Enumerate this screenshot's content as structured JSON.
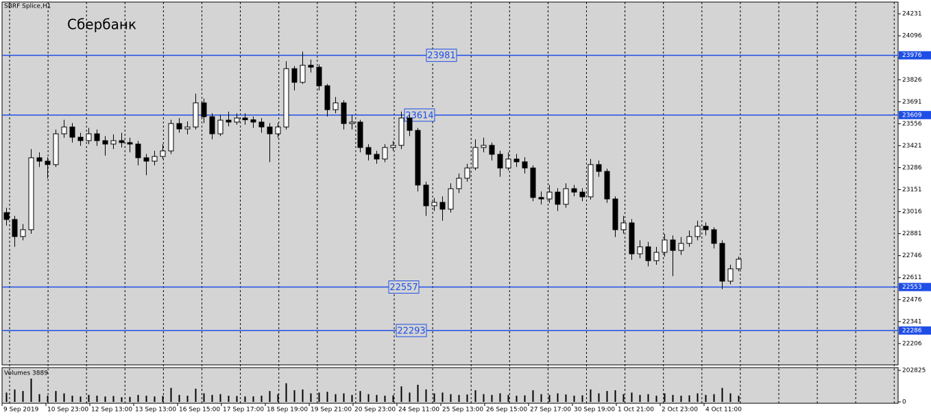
{
  "chart_data": {
    "type": "candlestick",
    "title": "SBRF Splice,H1",
    "annotation": "Сбербанк",
    "up_color": "#ffffff",
    "down_color": "#000000",
    "line_color": "#1e4ee6",
    "background": "#d4d4d4",
    "open": [
      23010,
      22968,
      22863,
      22905,
      23347,
      23326,
      23305,
      23494,
      23536,
      23473,
      23452,
      23494,
      23452,
      23431,
      23452,
      23440,
      23431,
      23347,
      23326,
      23355,
      23389,
      23557,
      23524,
      23536,
      23684,
      23599,
      23494,
      23578,
      23566,
      23591,
      23580,
      23566,
      23536,
      23494,
      23536,
      23894,
      23810,
      23915,
      23903,
      23789,
      23642,
      23684,
      23557,
      23566,
      23410,
      23368,
      23339,
      23410,
      23423,
      23591,
      23515,
      23179,
      23052,
      23073,
      23031,
      23157,
      23221,
      23284,
      23410,
      23423,
      23368,
      23284,
      23339,
      23322,
      23284,
      23103,
      23094,
      23136,
      23061,
      23157,
      23136,
      23107,
      23305,
      23263,
      23094,
      22905,
      22947,
      22757,
      22800,
      22715,
      22766,
      22842,
      22778,
      22821,
      22863,
      22926,
      22905,
      22821,
      22589,
      22665
    ],
    "high": [
      23040,
      22990,
      22940,
      23400,
      23380,
      23350,
      23520,
      23580,
      23560,
      23500,
      23530,
      23520,
      23480,
      23490,
      23500,
      23470,
      23450,
      23370,
      23390,
      23430,
      23580,
      23590,
      23570,
      23740,
      23710,
      23620,
      23610,
      23630,
      23620,
      23620,
      23600,
      23590,
      23560,
      23560,
      23940,
      23910,
      23999,
      23950,
      23920,
      23800,
      23720,
      23700,
      23610,
      23580,
      23430,
      23390,
      23430,
      23450,
      23630,
      23610,
      23530,
      23200,
      23100,
      23110,
      23190,
      23250,
      23310,
      23460,
      23470,
      23440,
      23390,
      23380,
      23370,
      23350,
      23300,
      23140,
      23180,
      23160,
      23190,
      23180,
      23160,
      23340,
      23330,
      23280,
      23110,
      22990,
      22970,
      22840,
      22830,
      22800,
      22880,
      22870,
      22860,
      22900,
      22960,
      22950,
      22920,
      22840,
      22690,
      22740
    ],
    "low": [
      22930,
      22800,
      22840,
      22880,
      23290,
      23220,
      23290,
      23470,
      23440,
      23420,
      23430,
      23420,
      23360,
      23400,
      23410,
      23380,
      23300,
      23240,
      23300,
      23340,
      23370,
      23500,
      23490,
      23520,
      23560,
      23460,
      23480,
      23540,
      23550,
      23550,
      23530,
      23500,
      23320,
      23470,
      23520,
      23760,
      23800,
      23870,
      23760,
      23600,
      23620,
      23520,
      23520,
      23380,
      23330,
      23310,
      23320,
      23390,
      23400,
      23480,
      23140,
      22990,
      23020,
      22960,
      23010,
      23130,
      23200,
      23270,
      23380,
      23330,
      23230,
      23270,
      23290,
      23250,
      23080,
      23060,
      23070,
      23020,
      23040,
      23110,
      23080,
      23090,
      23230,
      23070,
      22860,
      22880,
      22720,
      22730,
      22680,
      22690,
      22740,
      22620,
      22750,
      22800,
      22840,
      22870,
      22790,
      22540,
      22570,
      22650
    ],
    "close": [
      22968,
      22863,
      22905,
      23347,
      23326,
      23305,
      23494,
      23536,
      23473,
      23452,
      23494,
      23452,
      23431,
      23452,
      23440,
      23431,
      23347,
      23326,
      23355,
      23389,
      23557,
      23524,
      23536,
      23684,
      23599,
      23494,
      23578,
      23566,
      23591,
      23580,
      23566,
      23536,
      23494,
      23536,
      23894,
      23810,
      23915,
      23903,
      23789,
      23642,
      23684,
      23557,
      23566,
      23410,
      23368,
      23339,
      23410,
      23423,
      23591,
      23515,
      23179,
      23052,
      23073,
      23031,
      23157,
      23221,
      23284,
      23410,
      23423,
      23368,
      23284,
      23339,
      23322,
      23284,
      23103,
      23094,
      23136,
      23061,
      23157,
      23136,
      23107,
      23305,
      23263,
      23094,
      22905,
      22947,
      22757,
      22800,
      22715,
      22766,
      22842,
      22778,
      22821,
      22863,
      22926,
      22905,
      22821,
      22589,
      22665,
      22724
    ],
    "ylim": [
      22075,
      24303
    ],
    "yticks": [
      24231,
      24096,
      23961,
      23826,
      23691,
      23556,
      23421,
      23286,
      23151,
      23016,
      22881,
      22746,
      22611,
      22476,
      22341,
      22206
    ],
    "levels": [
      {
        "price": 23976,
        "annotation": "23981"
      },
      {
        "price": 23609,
        "annotation": "23614"
      },
      {
        "price": 22553,
        "annotation": "22557"
      },
      {
        "price": 22286,
        "annotation": "22293"
      }
    ],
    "time_labels": [
      "9 Sep 2019",
      "10 Sep 23:00",
      "12 Sep 13:00",
      "13 Sep 13:00",
      "16 Sep 15:00",
      "17 Sep 17:00",
      "18 Sep 19:00",
      "19 Sep 21:00",
      "20 Sep 23:00",
      "24 Sep 11:00",
      "25 Sep 13:00",
      "26 Sep 15:00",
      "27 Sep 17:00",
      "30 Sep 19:00",
      "1 Oct 21:00",
      "2 Oct 23:00",
      "4 Oct 11:00"
    ],
    "volume": {
      "title": "Volumes 3889",
      "color": "#000000",
      "values": [
        60000,
        80000,
        70000,
        150000,
        50000,
        40000,
        70000,
        55000,
        40000,
        35000,
        45000,
        40000,
        35000,
        38000,
        30000,
        32000,
        45000,
        40000,
        35000,
        38000,
        90000,
        45000,
        40000,
        85000,
        55000,
        45000,
        50000,
        40000,
        38000,
        35000,
        36000,
        40000,
        70000,
        50000,
        120000,
        75000,
        80000,
        55000,
        60000,
        65000,
        50000,
        55000,
        45000,
        70000,
        50000,
        45000,
        40000,
        42000,
        100000,
        60000,
        110000,
        80000,
        55000,
        60000,
        50000,
        45000,
        48000,
        75000,
        50000,
        45000,
        55000,
        45000,
        40000,
        42000,
        75000,
        50000,
        45000,
        55000,
        48000,
        40000,
        42000,
        80000,
        55000,
        70000,
        75000,
        50000,
        60000,
        45000,
        50000,
        40000,
        55000,
        45000,
        40000,
        42000,
        55000,
        45000,
        50000,
        90000,
        55000,
        40000
      ],
      "ylim": [
        0,
        202825
      ],
      "yticks": [
        202825,
        0
      ]
    }
  }
}
